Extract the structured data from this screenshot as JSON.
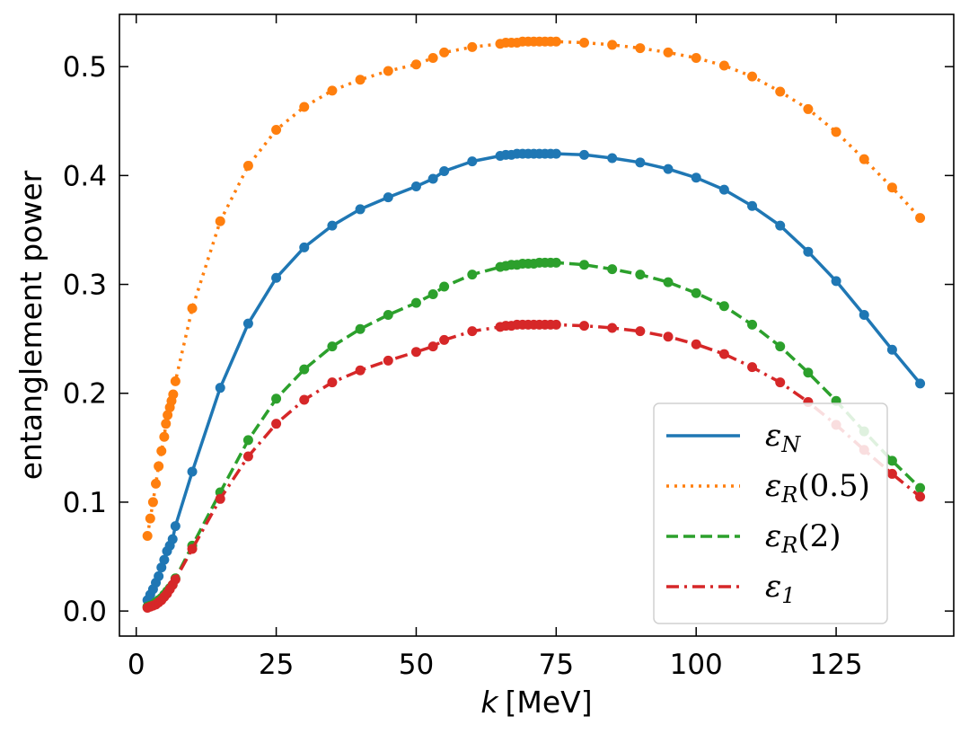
{
  "chart_data": {
    "type": "line",
    "xlabel_var": "k",
    "xlabel_unit": "[MeV]",
    "ylabel": "entanglement power",
    "xlim": [
      -3,
      146
    ],
    "ylim": [
      -0.023,
      0.548
    ],
    "xticks": [
      0,
      25,
      50,
      75,
      100,
      125
    ],
    "xtick_labels": [
      "0",
      "25",
      "50",
      "75",
      "100",
      "125"
    ],
    "yticks": [
      0.0,
      0.1,
      0.2,
      0.3,
      0.4,
      0.5
    ],
    "ytick_labels": [
      "0.0",
      "0.1",
      "0.2",
      "0.3",
      "0.4",
      "0.5"
    ],
    "legend_position": "lower-right",
    "series": [
      {
        "name": "εN",
        "legend_main": "ε",
        "legend_sub": "N",
        "legend_rest": "",
        "color": "#1f77b4",
        "dash": "solid",
        "x": [
          2,
          2.5,
          3,
          3.5,
          4,
          4.5,
          5,
          5.5,
          6,
          6.5,
          7,
          10,
          15,
          20,
          25,
          30,
          35,
          40,
          45,
          50,
          53,
          55,
          60,
          65,
          66,
          67,
          68,
          69,
          70,
          71,
          72,
          73,
          74,
          75,
          80,
          85,
          90,
          95,
          100,
          105,
          110,
          115,
          120,
          125,
          130,
          135,
          140
        ],
        "y": [
          0.01,
          0.015,
          0.02,
          0.026,
          0.032,
          0.04,
          0.047,
          0.055,
          0.06,
          0.066,
          0.078,
          0.128,
          0.205,
          0.264,
          0.306,
          0.334,
          0.354,
          0.369,
          0.38,
          0.39,
          0.397,
          0.404,
          0.413,
          0.418,
          0.419,
          0.419,
          0.42,
          0.42,
          0.42,
          0.42,
          0.42,
          0.42,
          0.42,
          0.42,
          0.419,
          0.416,
          0.412,
          0.406,
          0.398,
          0.387,
          0.372,
          0.354,
          0.33,
          0.303,
          0.272,
          0.24,
          0.209
        ]
      },
      {
        "name": "εR(0.5)",
        "legend_main": "ε",
        "legend_sub": "R",
        "legend_rest": "(0.5)",
        "color": "#ff7f0e",
        "dash": "dotted",
        "x": [
          2,
          2.5,
          3,
          3.5,
          4,
          4.5,
          5,
          5.3,
          5.6,
          6,
          6.3,
          6.6,
          7,
          10,
          15,
          20,
          25,
          30,
          35,
          40,
          45,
          50,
          53,
          55,
          60,
          65,
          66,
          67,
          68,
          69,
          70,
          71,
          72,
          73,
          74,
          75,
          80,
          85,
          90,
          95,
          100,
          105,
          110,
          115,
          120,
          125,
          130,
          135,
          140
        ],
        "y": [
          0.069,
          0.085,
          0.1,
          0.117,
          0.133,
          0.147,
          0.16,
          0.172,
          0.18,
          0.187,
          0.193,
          0.199,
          0.211,
          0.278,
          0.358,
          0.409,
          0.442,
          0.463,
          0.478,
          0.488,
          0.496,
          0.502,
          0.508,
          0.513,
          0.518,
          0.521,
          0.522,
          0.522,
          0.522,
          0.523,
          0.523,
          0.523,
          0.523,
          0.523,
          0.523,
          0.523,
          0.522,
          0.52,
          0.517,
          0.513,
          0.508,
          0.501,
          0.491,
          0.477,
          0.461,
          0.44,
          0.415,
          0.389,
          0.361
        ]
      },
      {
        "name": "εR(2)",
        "legend_main": "ε",
        "legend_sub": "R",
        "legend_rest": "(2)",
        "color": "#2ca02c",
        "dash": "dashed",
        "x": [
          2,
          2.5,
          3,
          3.5,
          4,
          4.5,
          5,
          5.5,
          6,
          6.5,
          7,
          10,
          15,
          20,
          25,
          30,
          35,
          40,
          45,
          50,
          53,
          55,
          60,
          65,
          66,
          67,
          68,
          69,
          70,
          71,
          72,
          73,
          74,
          75,
          80,
          85,
          90,
          95,
          100,
          105,
          110,
          115,
          120,
          125,
          130,
          135,
          140
        ],
        "y": [
          0.004,
          0.005,
          0.006,
          0.008,
          0.01,
          0.012,
          0.015,
          0.018,
          0.021,
          0.024,
          0.03,
          0.06,
          0.109,
          0.157,
          0.195,
          0.222,
          0.243,
          0.259,
          0.272,
          0.283,
          0.291,
          0.298,
          0.309,
          0.316,
          0.317,
          0.318,
          0.318,
          0.319,
          0.319,
          0.319,
          0.32,
          0.32,
          0.32,
          0.32,
          0.318,
          0.314,
          0.309,
          0.302,
          0.292,
          0.28,
          0.263,
          0.243,
          0.219,
          0.193,
          0.165,
          0.138,
          0.113
        ]
      },
      {
        "name": "ε1",
        "legend_main": "ε",
        "legend_sub": "1",
        "legend_rest": "",
        "color": "#d62728",
        "dash": "dashdot",
        "x": [
          2,
          2.5,
          3,
          3.5,
          4,
          4.5,
          5,
          5.5,
          6,
          6.5,
          7,
          10,
          15,
          20,
          25,
          30,
          35,
          40,
          45,
          50,
          53,
          55,
          60,
          65,
          66,
          67,
          68,
          69,
          70,
          71,
          72,
          73,
          74,
          75,
          80,
          85,
          90,
          95,
          100,
          105,
          110,
          115,
          120,
          125,
          130,
          135,
          140
        ],
        "y": [
          0.003,
          0.004,
          0.005,
          0.006,
          0.008,
          0.01,
          0.013,
          0.016,
          0.02,
          0.024,
          0.029,
          0.057,
          0.103,
          0.142,
          0.172,
          0.194,
          0.21,
          0.221,
          0.23,
          0.238,
          0.243,
          0.249,
          0.257,
          0.261,
          0.262,
          0.262,
          0.263,
          0.263,
          0.263,
          0.263,
          0.263,
          0.263,
          0.263,
          0.263,
          0.262,
          0.26,
          0.257,
          0.252,
          0.245,
          0.236,
          0.224,
          0.21,
          0.192,
          0.171,
          0.148,
          0.126,
          0.105
        ]
      }
    ]
  }
}
